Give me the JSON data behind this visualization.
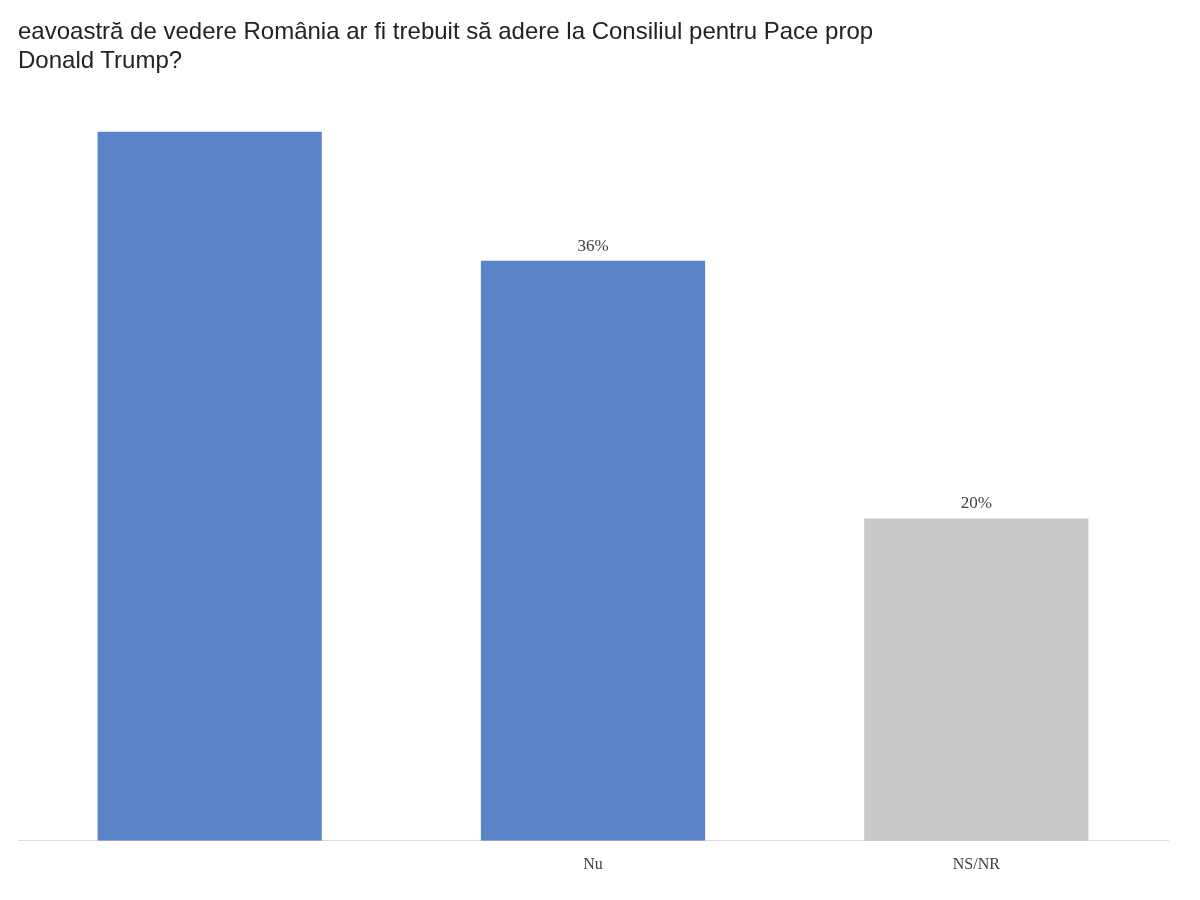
{
  "chart_data": {
    "type": "bar",
    "title": "eavoastră de vedere România ar fi trebuit să adere la Consiliul pentru Pace prop\nDonald Trump?",
    "categories": [
      null,
      "Nu",
      "NS/NR"
    ],
    "values": [
      44,
      36,
      20
    ],
    "value_labels": [
      null,
      "36%",
      "20%"
    ],
    "colors": [
      "#5b84c8",
      "#5b84c8",
      "#c8c8c8"
    ],
    "grid": false,
    "legend": false,
    "tick_labels": "x"
  }
}
